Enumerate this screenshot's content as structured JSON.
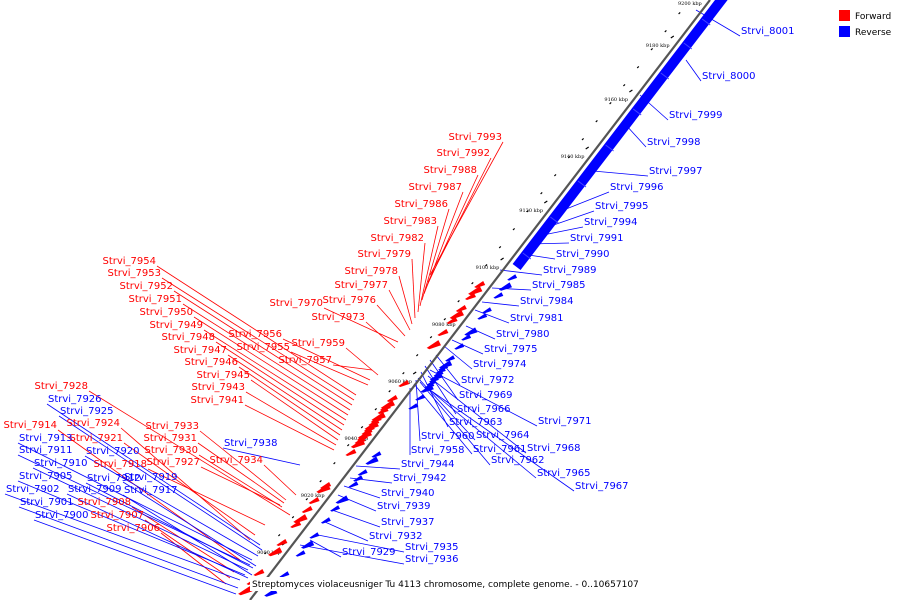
{
  "title": "Streptomyces violaceusniger Tu 4113 chromosome, complete genome. - 0..10657107",
  "legend": [
    {
      "label": "Forward",
      "color": "#ff0000"
    },
    {
      "label": "Reverse",
      "color": "#0000ff"
    }
  ],
  "colors": {
    "forward": "#ff0000",
    "reverse": "#0000ff",
    "backbone": "#555555"
  },
  "ticks": [
    "9000 kbp",
    "9020 kbp",
    "9040 kbp",
    "9060 kbp",
    "9080 kbp",
    "9100 kbp",
    "9120 kbp",
    "9140 kbp",
    "9160 kbp",
    "9180 kbp",
    "9200 kbp"
  ],
  "forward_labels": [
    "Strvi_7993",
    "Strvi_7992",
    "Strvi_7988",
    "Strvi_7987",
    "Strvi_7986",
    "Strvi_7983",
    "Strvi_7982",
    "Strvi_7979",
    "Strvi_7978",
    "Strvi_7977",
    "Strvi_7976",
    "Strvi_7970",
    "Strvi_7973",
    "Strvi_7954",
    "Strvi_7953",
    "Strvi_7952",
    "Strvi_7951",
    "Strvi_7950",
    "Strvi_7949",
    "Strvi_7948",
    "Strvi_7947",
    "Strvi_7946",
    "Strvi_7945",
    "Strvi_7943",
    "Strvi_7941",
    "Strvi_7956",
    "Strvi_7955",
    "Strvi_7959",
    "Strvi_7957",
    "Strvi_7928",
    "Strvi_7914",
    "Strvi_7924",
    "Strvi_7921",
    "Strvi_7918",
    "Strvi_7927",
    "Strvi_7933",
    "Strvi_7931",
    "Strvi_7930",
    "Strvi_7934",
    "Strvi_7908",
    "Strvi_7907",
    "Strvi_7906"
  ],
  "reverse_labels": [
    "Strvi_8001",
    "Strvi_8000",
    "Strvi_7999",
    "Strvi_7998",
    "Strvi_7997",
    "Strvi_7996",
    "Strvi_7995",
    "Strvi_7994",
    "Strvi_7991",
    "Strvi_7990",
    "Strvi_7989",
    "Strvi_7985",
    "Strvi_7984",
    "Strvi_7981",
    "Strvi_7980",
    "Strvi_7975",
    "Strvi_7974",
    "Strvi_7972",
    "Strvi_7969",
    "Strvi_7966",
    "Strvi_7963",
    "Strvi_7971",
    "Strvi_7964",
    "Strvi_7960",
    "Strvi_7961",
    "Strvi_7968",
    "Strvi_7958",
    "Strvi_7962",
    "Strvi_7965",
    "Strvi_7967",
    "Strvi_7944",
    "Strvi_7942",
    "Strvi_7940",
    "Strvi_7939",
    "Strvi_7937",
    "Strvi_7932",
    "Strvi_7935",
    "Strvi_7929",
    "Strvi_7936",
    "Strvi_7938",
    "Strvi_7926",
    "Strvi_7925",
    "Strvi_7913",
    "Strvi_7911",
    "Strvi_7920",
    "Strvi_7910",
    "Strvi_7905",
    "Strvi_7912",
    "Strvi_7919",
    "Strvi_7902",
    "Strvi_7909",
    "Strvi_7917",
    "Strvi_7901",
    "Strvi_7900"
  ]
}
